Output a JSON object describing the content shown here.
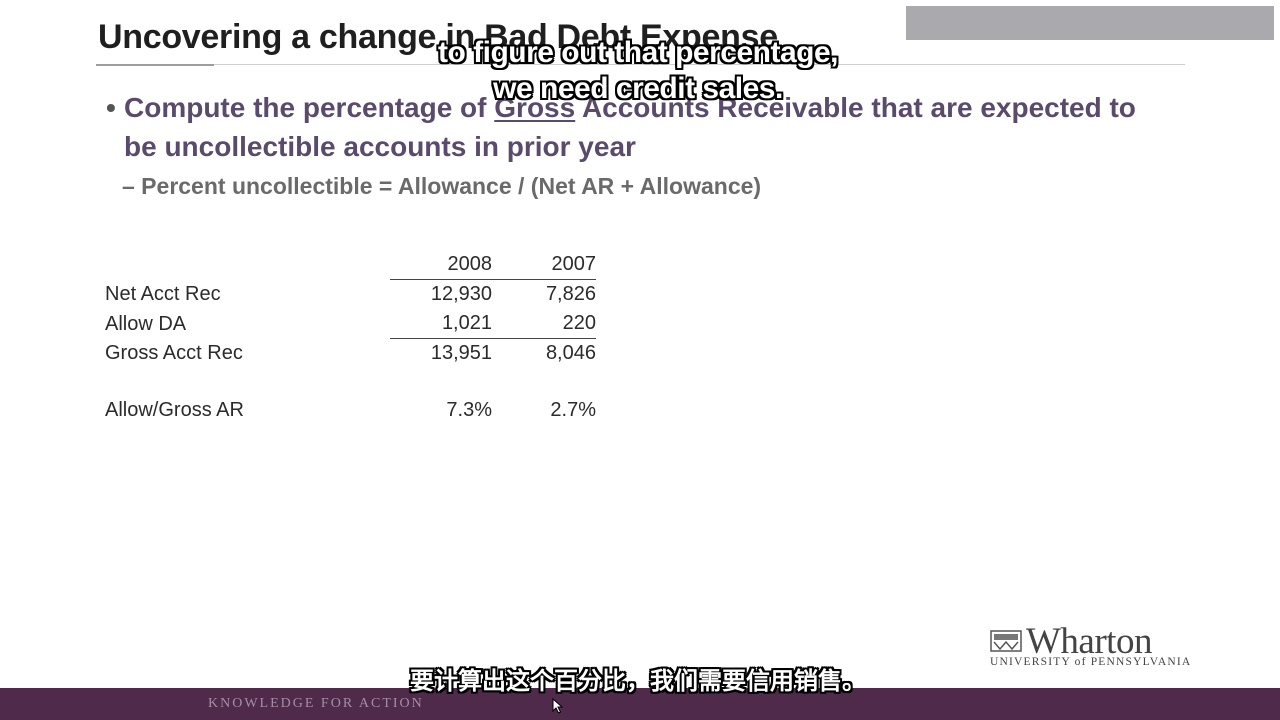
{
  "slide": {
    "title": "Uncovering a change in Bad Debt Expense",
    "top_box_text": "",
    "bullet": {
      "before": "Compute the percentage of ",
      "underlined": "Gross",
      "after": " Accounts Receivable that are expected to be uncollectible accounts in prior year"
    },
    "sub_bullet": "– Percent uncollectible = Allowance / (Net AR + Allowance)"
  },
  "table": {
    "headers": [
      "2008",
      "2007"
    ],
    "rows": [
      {
        "label": "Net Acct Rec",
        "values": [
          "12,930",
          "7,826"
        ]
      },
      {
        "label": "Allow DA",
        "values": [
          "1,021",
          "220"
        ]
      },
      {
        "label": "Gross Acct Rec",
        "values": [
          "13,951",
          "8,046"
        ]
      },
      {
        "label": "Allow/Gross AR",
        "values": [
          "7.3%",
          "2.7%"
        ]
      }
    ]
  },
  "branding": {
    "logo_word": "Wharton",
    "logo_sub": "UNIVERSITY of PENNSYLVANIA",
    "tagline": "KNOWLEDGE FOR ACTION",
    "bar_color": "#4f2a4a",
    "accent_purple": "#5a4a6b"
  },
  "captions": {
    "english_line1": "to figure out that percentage,",
    "english_line2": "we need credit sales.",
    "chinese": "要计算出这个百分比，我们需要信用销售。"
  }
}
